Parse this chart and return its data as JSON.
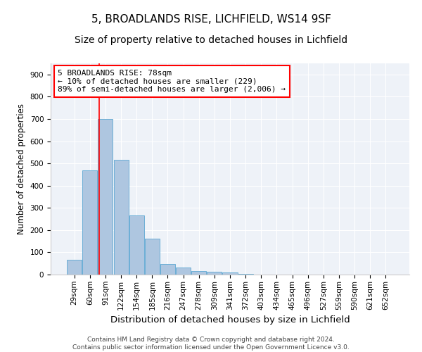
{
  "title_line1": "5, BROADLANDS RISE, LICHFIELD, WS14 9SF",
  "title_line2": "Size of property relative to detached houses in Lichfield",
  "xlabel": "Distribution of detached houses by size in Lichfield",
  "ylabel": "Number of detached properties",
  "categories": [
    "29sqm",
    "60sqm",
    "91sqm",
    "122sqm",
    "154sqm",
    "185sqm",
    "216sqm",
    "247sqm",
    "278sqm",
    "309sqm",
    "341sqm",
    "372sqm",
    "403sqm",
    "434sqm",
    "465sqm",
    "496sqm",
    "527sqm",
    "559sqm",
    "590sqm",
    "621sqm",
    "652sqm"
  ],
  "values": [
    65,
    470,
    700,
    515,
    265,
    160,
    47,
    33,
    15,
    12,
    10,
    4,
    0,
    0,
    0,
    0,
    0,
    0,
    0,
    0,
    0
  ],
  "bar_color": "#aec6e0",
  "bar_edge_color": "#6baed6",
  "property_line_bin_index": 1.6,
  "annotation_text": "5 BROADLANDS RISE: 78sqm\n← 10% of detached houses are smaller (229)\n89% of semi-detached houses are larger (2,006) →",
  "annotation_box_color": "white",
  "annotation_box_edge_color": "red",
  "vline_color": "red",
  "ylim": [
    0,
    950
  ],
  "yticks": [
    0,
    100,
    200,
    300,
    400,
    500,
    600,
    700,
    800,
    900
  ],
  "footnote": "Contains HM Land Registry data © Crown copyright and database right 2024.\nContains public sector information licensed under the Open Government Licence v3.0.",
  "background_color": "#eef2f8",
  "grid_color": "white",
  "title_fontsize": 11,
  "subtitle_fontsize": 10,
  "tick_fontsize": 7.5,
  "xlabel_fontsize": 9.5,
  "ylabel_fontsize": 8.5,
  "annotation_fontsize": 8,
  "footnote_fontsize": 6.5
}
